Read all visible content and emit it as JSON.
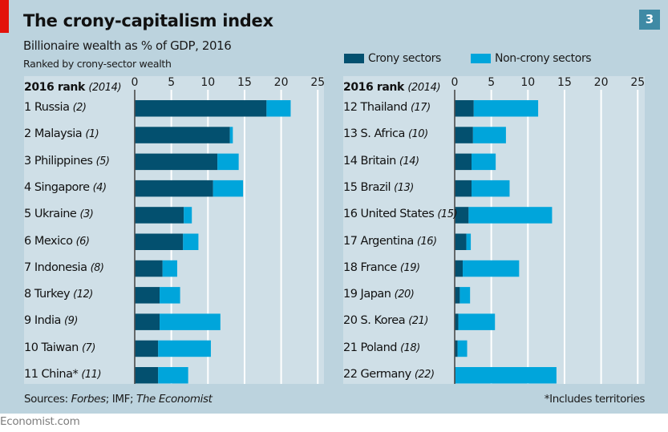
{
  "header": {
    "title": "The crony-capitalism index",
    "subtitle": "Billionaire wealth as % of GDP, 2016",
    "subsubtitle": "Ranked by crony-sector wealth",
    "badge": "3"
  },
  "footer": {
    "sources_prefix": "Sources: ",
    "sources_1": "Forbes",
    "sources_sep": "; IMF; ",
    "sources_2": "The Economist",
    "footnote": "*Includes territories",
    "brand": "Economist.com"
  },
  "colors": {
    "crony": "#03506f",
    "non_crony": "#00a5db",
    "background": "#bcd3de",
    "panel": "#cfdfe7",
    "badge": "#3f8aa5",
    "red_tag": "#e3120b"
  },
  "chart_data": {
    "type": "bar",
    "orientation": "horizontal",
    "stacked": true,
    "title": "The crony-capitalism index",
    "subtitle": "Billionaire wealth as % of GDP, 2016",
    "note": "Ranked by crony-sector wealth",
    "xlabel": "",
    "ylabel": "2016 rank (2014)",
    "rank_header": "2016 rank",
    "rank_header_sub": "(2014)",
    "xlim": [
      0,
      25
    ],
    "xticks": [
      0,
      5,
      10,
      15,
      20,
      25
    ],
    "grid": true,
    "legend_position": "top-right",
    "legend": [
      "Crony sectors",
      "Non-crony sectors"
    ],
    "panels": [
      {
        "rows": [
          {
            "rank": "1",
            "name": "Russia",
            "prev": "(2)",
            "crony": 18.0,
            "non_crony": 3.3
          },
          {
            "rank": "2",
            "name": "Malaysia",
            "prev": "(1)",
            "crony": 13.0,
            "non_crony": 0.4
          },
          {
            "rank": "3",
            "name": "Philippines",
            "prev": "(5)",
            "crony": 11.3,
            "non_crony": 2.9
          },
          {
            "rank": "4",
            "name": "Singapore",
            "prev": "(4)",
            "crony": 10.7,
            "non_crony": 4.1
          },
          {
            "rank": "5",
            "name": "Ukraine",
            "prev": "(3)",
            "crony": 6.7,
            "non_crony": 1.1
          },
          {
            "rank": "6",
            "name": "Mexico",
            "prev": "(6)",
            "crony": 6.6,
            "non_crony": 2.1
          },
          {
            "rank": "7",
            "name": "Indonesia",
            "prev": "(8)",
            "crony": 3.8,
            "non_crony": 2.0
          },
          {
            "rank": "8",
            "name": "Turkey",
            "prev": "(12)",
            "crony": 3.4,
            "non_crony": 2.8
          },
          {
            "rank": "9",
            "name": "India",
            "prev": "(9)",
            "crony": 3.4,
            "non_crony": 8.3
          },
          {
            "rank": "10",
            "name": "Taiwan",
            "prev": "(7)",
            "crony": 3.2,
            "non_crony": 7.2
          },
          {
            "rank": "11",
            "name": "China*",
            "prev": "(11)",
            "crony": 3.2,
            "non_crony": 4.1
          }
        ]
      },
      {
        "rows": [
          {
            "rank": "12",
            "name": "Thailand",
            "prev": "(17)",
            "crony": 2.6,
            "non_crony": 8.8
          },
          {
            "rank": "13",
            "name": "S. Africa",
            "prev": "(10)",
            "crony": 2.5,
            "non_crony": 4.5
          },
          {
            "rank": "14",
            "name": "Britain",
            "prev": "(14)",
            "crony": 2.3,
            "non_crony": 3.3
          },
          {
            "rank": "15",
            "name": "Brazil",
            "prev": "(13)",
            "crony": 2.3,
            "non_crony": 5.2
          },
          {
            "rank": "16",
            "name": "United States",
            "prev": "(15)",
            "crony": 1.9,
            "non_crony": 11.4
          },
          {
            "rank": "17",
            "name": "Argentina",
            "prev": "(16)",
            "crony": 1.6,
            "non_crony": 0.6
          },
          {
            "rank": "18",
            "name": "France",
            "prev": "(19)",
            "crony": 1.1,
            "non_crony": 7.7
          },
          {
            "rank": "19",
            "name": "Japan",
            "prev": "(20)",
            "crony": 0.7,
            "non_crony": 1.4
          },
          {
            "rank": "20",
            "name": "S. Korea",
            "prev": "(21)",
            "crony": 0.5,
            "non_crony": 5.0
          },
          {
            "rank": "21",
            "name": "Poland",
            "prev": "(18)",
            "crony": 0.4,
            "non_crony": 1.3
          },
          {
            "rank": "22",
            "name": "Germany",
            "prev": "(22)",
            "crony": 0.1,
            "non_crony": 13.8
          }
        ]
      }
    ]
  }
}
